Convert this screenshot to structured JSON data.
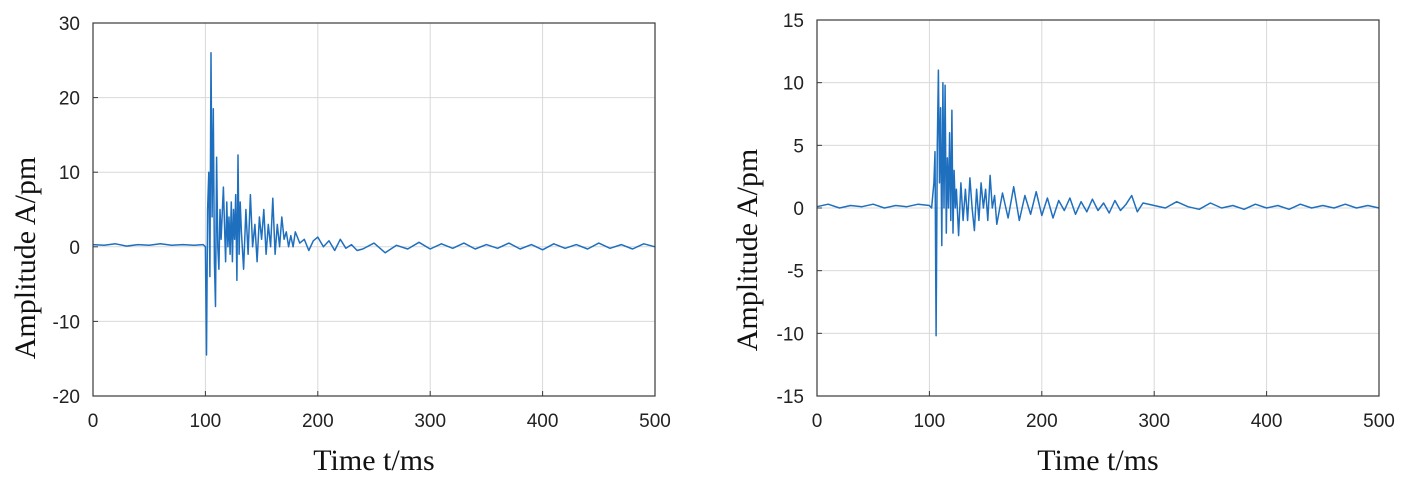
{
  "chart_data": [
    {
      "type": "line",
      "title": "",
      "xlabel": "Time t/ms",
      "ylabel": "Amplitude A/pm",
      "xlim": [
        0,
        500
      ],
      "ylim": [
        -20,
        30
      ],
      "xticks": [
        0,
        100,
        200,
        300,
        400,
        500
      ],
      "yticks": [
        -20,
        -10,
        0,
        10,
        20,
        30
      ],
      "grid": true,
      "line_color": "#1f6fbf",
      "series": [
        {
          "x": [
            0,
            10,
            20,
            30,
            40,
            50,
            60,
            70,
            80,
            90,
            98,
            100,
            101,
            102,
            103,
            104,
            105,
            106,
            107,
            108,
            109,
            110,
            111,
            112,
            113,
            114,
            116,
            118,
            119,
            120,
            121,
            122,
            123,
            124,
            125,
            126,
            127,
            128,
            129,
            130,
            131,
            132,
            134,
            136,
            138,
            140,
            142,
            144,
            146,
            148,
            150,
            152,
            154,
            156,
            158,
            160,
            162,
            164,
            166,
            168,
            170,
            172,
            174,
            176,
            178,
            180,
            184,
            188,
            192,
            196,
            200,
            205,
            210,
            215,
            220,
            225,
            230,
            235,
            240,
            250,
            260,
            270,
            280,
            290,
            300,
            310,
            320,
            330,
            340,
            350,
            360,
            370,
            380,
            390,
            400,
            410,
            420,
            430,
            440,
            450,
            460,
            470,
            480,
            490,
            500
          ],
          "y": [
            0.3,
            0.2,
            0.4,
            0.1,
            0.3,
            0.2,
            0.4,
            0.2,
            0.3,
            0.2,
            0.3,
            0,
            -14.5,
            5,
            10,
            -4,
            26,
            4,
            18.5,
            -2,
            -8,
            12,
            0,
            -3,
            5,
            1,
            8,
            -2,
            6,
            0,
            4,
            -1,
            6,
            -2,
            5,
            1,
            7,
            -4.5,
            12.3,
            -1,
            6,
            2,
            -3,
            5,
            -1,
            7,
            0,
            3,
            -2,
            4,
            1,
            5,
            -1,
            3,
            0,
            6.5,
            -1,
            3,
            0,
            4,
            1,
            2,
            0,
            1.5,
            0,
            2,
            0.5,
            1,
            -0.5,
            0.8,
            1.3,
            0,
            0.8,
            -0.5,
            1,
            -0.2,
            0.3,
            -0.5,
            -0.3,
            0.5,
            -0.8,
            0.2,
            -0.3,
            0.6,
            -0.3,
            0.4,
            -0.2,
            0.5,
            -0.3,
            0.3,
            -0.2,
            0.5,
            -0.3,
            0.3,
            -0.4,
            0.4,
            -0.2,
            0.3,
            -0.3,
            0.5,
            -0.2,
            0.3,
            -0.3,
            0.4,
            0
          ]
        }
      ]
    },
    {
      "type": "line",
      "title": "",
      "xlabel": "Time t/ms",
      "ylabel": "Amplitude A/pm",
      "xlim": [
        0,
        500
      ],
      "ylim": [
        -15,
        15
      ],
      "xticks": [
        0,
        100,
        200,
        300,
        400,
        500
      ],
      "yticks": [
        -15,
        -10,
        -5,
        0,
        5,
        10,
        15
      ],
      "grid": true,
      "line_color": "#1f6fbf",
      "series": [
        {
          "x": [
            0,
            10,
            20,
            30,
            40,
            50,
            60,
            70,
            80,
            90,
            100,
            102,
            104,
            105,
            106,
            107,
            108,
            109,
            110,
            111,
            112,
            113,
            114,
            115,
            116,
            117,
            118,
            119,
            120,
            121,
            122,
            123,
            124,
            126,
            128,
            130,
            132,
            134,
            136,
            138,
            140,
            142,
            144,
            146,
            148,
            150,
            152,
            154,
            156,
            158,
            160,
            165,
            170,
            175,
            180,
            185,
            190,
            195,
            200,
            205,
            210,
            215,
            220,
            225,
            230,
            235,
            240,
            245,
            250,
            255,
            260,
            265,
            270,
            275,
            280,
            285,
            290,
            300,
            310,
            320,
            330,
            340,
            350,
            360,
            370,
            380,
            390,
            400,
            410,
            420,
            430,
            440,
            450,
            460,
            470,
            480,
            490,
            500
          ],
          "y": [
            0.1,
            0.3,
            0,
            0.2,
            0.1,
            0.3,
            0,
            0.2,
            0.1,
            0.3,
            0.2,
            0,
            2,
            4.5,
            -10.2,
            5,
            11,
            2,
            8,
            -3,
            10,
            0,
            9.8,
            -2,
            4,
            0,
            6,
            -1,
            7.8,
            -2,
            3,
            0,
            1.5,
            -2.2,
            2,
            -1,
            1.5,
            -1,
            2.4,
            0,
            -1.8,
            1.5,
            -1,
            2,
            0,
            1.5,
            -1,
            2.6,
            0,
            1,
            -1.3,
            1.2,
            -0.8,
            1.7,
            -1,
            1,
            -0.5,
            1.3,
            -0.6,
            0.8,
            -0.8,
            0.6,
            -0.2,
            0.8,
            -0.5,
            0.5,
            -0.3,
            0.7,
            -0.2,
            0.4,
            -0.4,
            0.6,
            -0.2,
            0.3,
            1,
            -0.3,
            0.4,
            0.2,
            0,
            0.5,
            0.1,
            -0.1,
            0.4,
            0,
            0.2,
            -0.1,
            0.3,
            0,
            0.2,
            -0.1,
            0.3,
            0,
            0.2,
            0,
            0.3,
            0,
            0.2,
            0
          ]
        }
      ]
    }
  ]
}
